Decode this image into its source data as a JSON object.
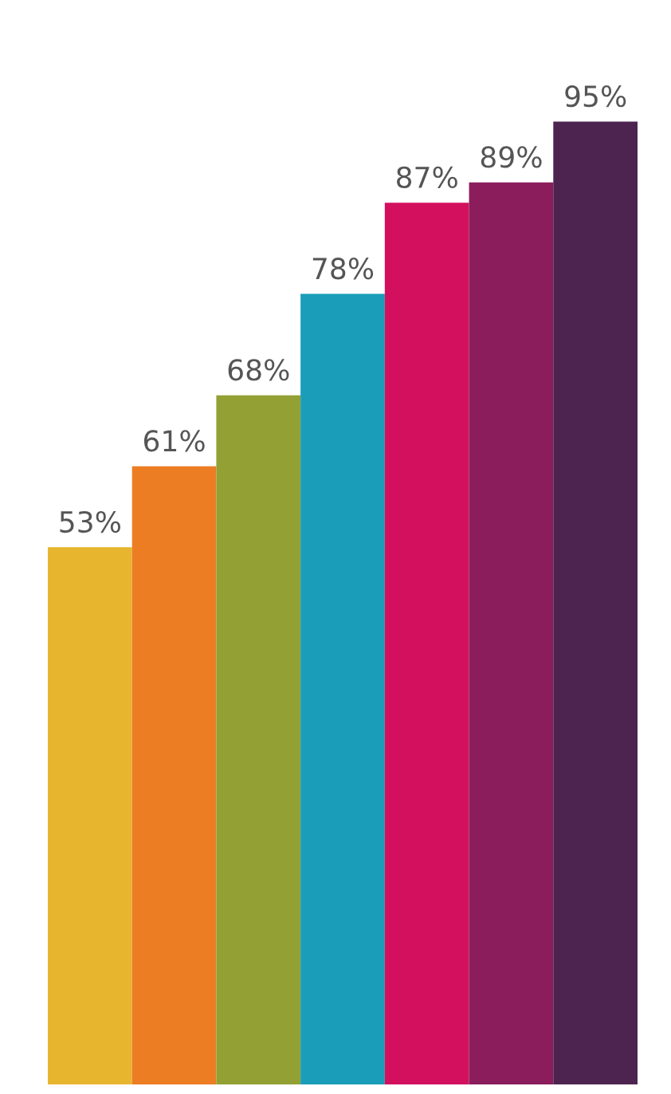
{
  "chart_data": {
    "type": "bar",
    "categories": [
      null,
      null,
      null,
      null,
      null,
      null,
      null
    ],
    "values": [
      53,
      61,
      68,
      78,
      87,
      89,
      95
    ],
    "colors": [
      "#e8b52e",
      "#ec7d23",
      "#93a034",
      "#1a9db8",
      "#d3105e",
      "#8b1d5c",
      "#4d2450"
    ],
    "value_labels": [
      "53%",
      "61%",
      "68%",
      "78%",
      "87%",
      "89%",
      "95%"
    ],
    "grid": false,
    "legend": false
  }
}
